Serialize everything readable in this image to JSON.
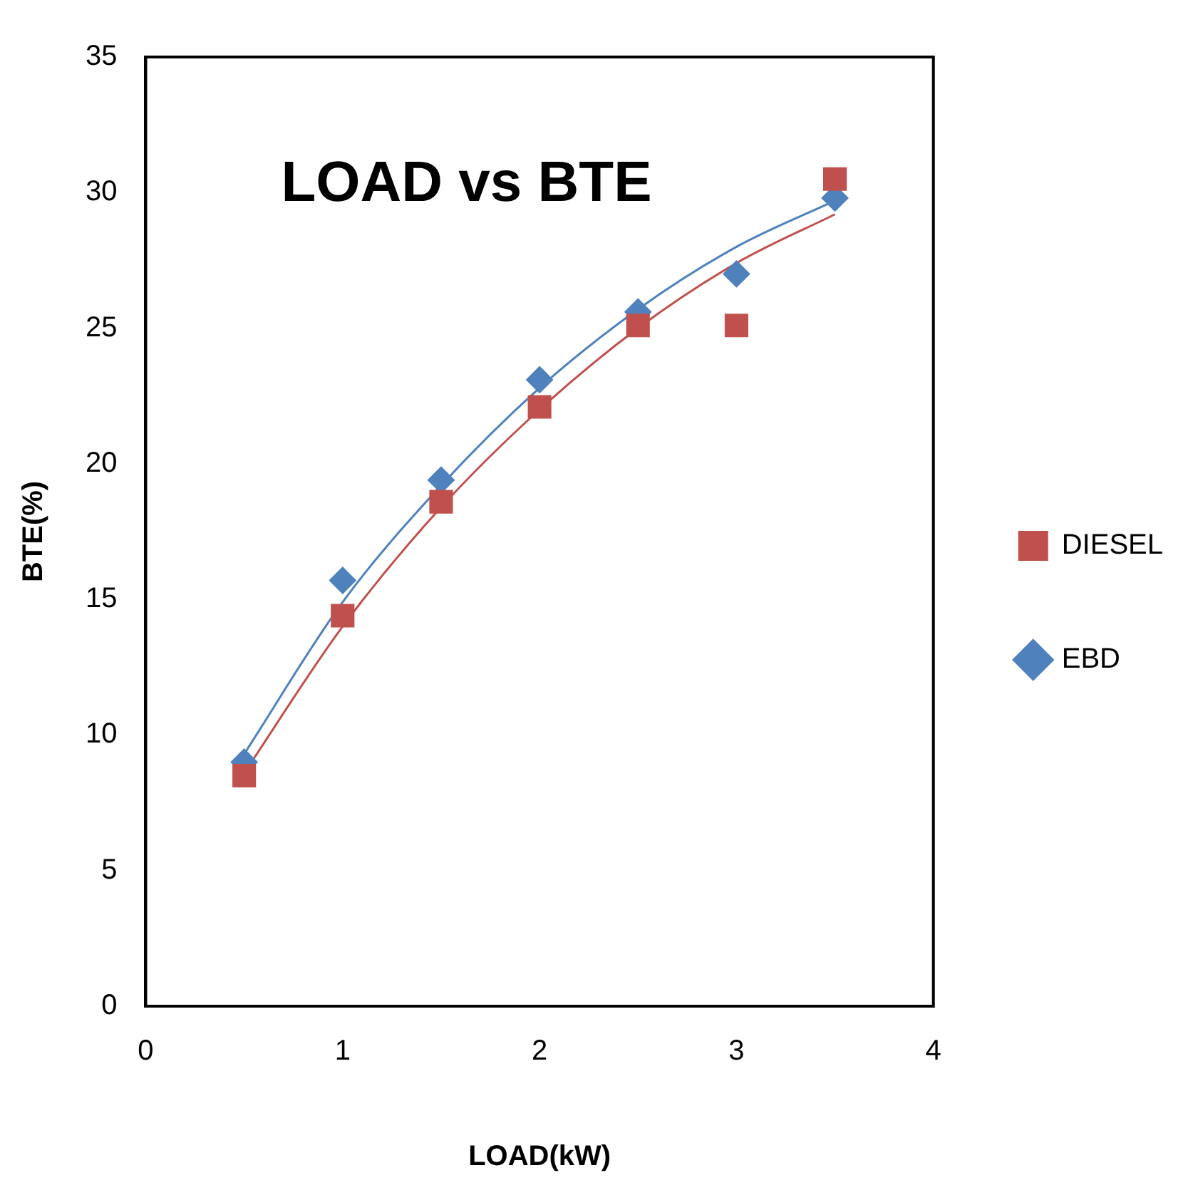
{
  "chart_data": {
    "type": "scatter",
    "title": "LOAD vs BTE",
    "xlabel": "LOAD(kW)",
    "ylabel": "BTE(%)",
    "xlim": [
      0,
      4
    ],
    "xticks": [
      0,
      1,
      2,
      3,
      4
    ],
    "ylim": [
      0,
      35
    ],
    "yticks": [
      0,
      5,
      10,
      15,
      20,
      25,
      30,
      35
    ],
    "grid": false,
    "legend": "right",
    "series": [
      {
        "name": "EBD",
        "marker": "diamond",
        "color": "#4f81bd",
        "x": [
          0.5,
          1,
          1.5,
          2,
          2.5,
          3,
          3.5
        ],
        "values": [
          9.0,
          15.7,
          19.4,
          23.1,
          25.6,
          27.0,
          29.8
        ]
      },
      {
        "name": "DIESEL",
        "marker": "square",
        "color": "#c0504d",
        "x": [
          0.5,
          1,
          1.5,
          2,
          2.5,
          3,
          3.5
        ],
        "values": [
          8.5,
          14.4,
          18.6,
          22.1,
          25.1,
          25.1,
          30.5
        ]
      },
      {
        "type": "line",
        "marker": "none",
        "color": "#4f81bd",
        "x": [
          0.5,
          1,
          1.5,
          2,
          2.5,
          3,
          3.5
        ],
        "values": [
          9.3,
          14.9,
          19.2,
          22.8,
          25.7,
          28.0,
          29.7
        ]
      },
      {
        "type": "line",
        "marker": "none",
        "color": "#c0504d",
        "x": [
          0.5,
          1,
          1.5,
          2,
          2.5,
          3,
          3.5
        ],
        "values": [
          8.6,
          14.0,
          18.4,
          22.0,
          25.0,
          27.4,
          29.2
        ]
      }
    ]
  }
}
